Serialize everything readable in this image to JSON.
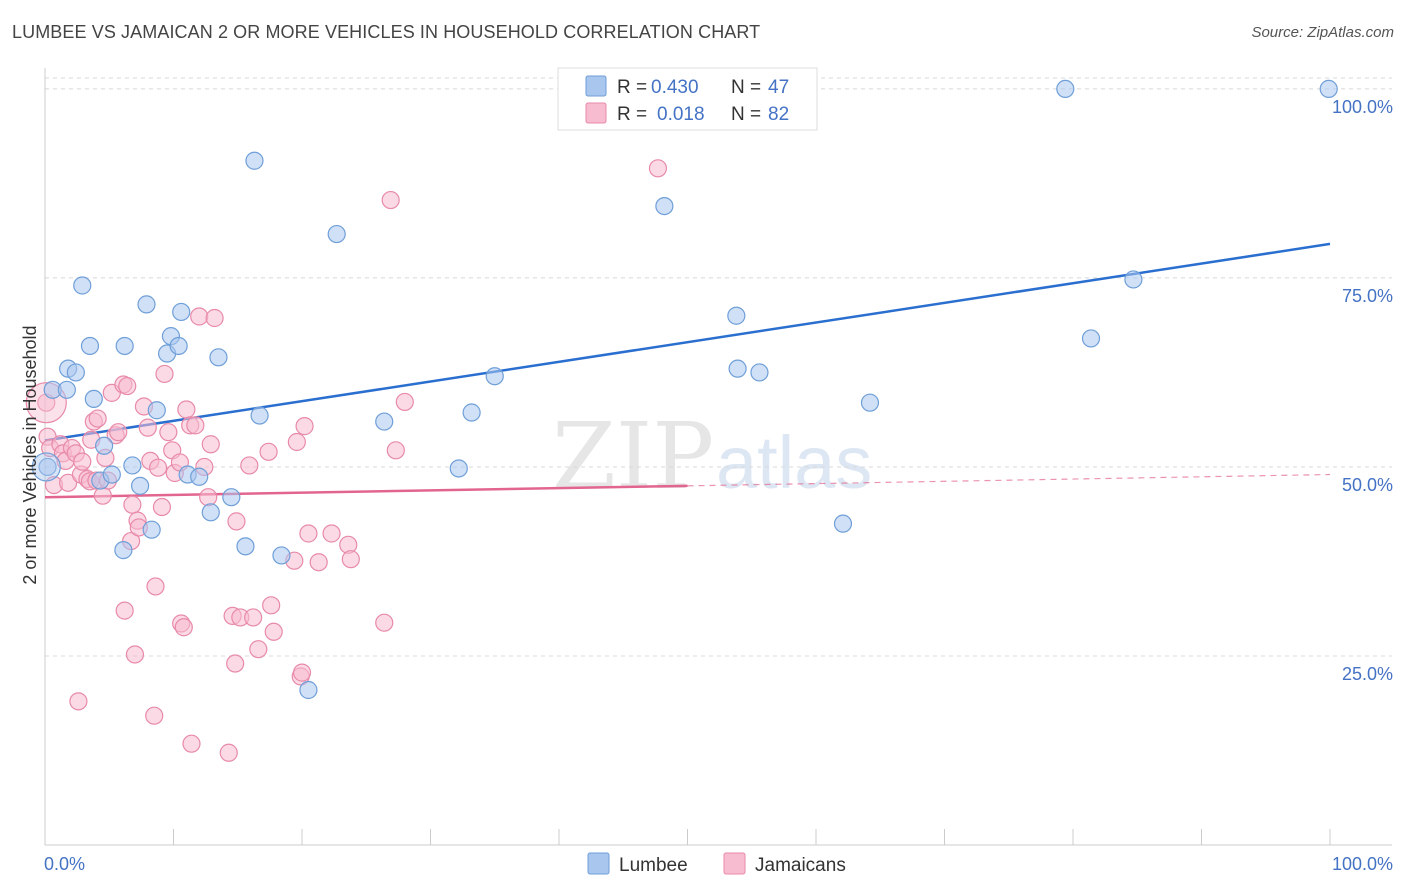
{
  "header": {
    "title": "LUMBEE VS JAMAICAN 2 OR MORE VEHICLES IN HOUSEHOLD CORRELATION CHART",
    "source": "Source: ZipAtlas.com"
  },
  "watermark": {
    "zip": "ZIP",
    "atlas": "atlas"
  },
  "colors": {
    "lumbee_fill": "#a9c6ee",
    "lumbee_stroke": "#6f9fd8",
    "lumbee_line": "#2a6fcf",
    "jam_fill": "#f7bcd0",
    "jam_stroke": "#e88aaa",
    "jam_line": "#e2658f",
    "grid": "#d8d8d8",
    "tick_label": "#4472c4"
  },
  "legend": {
    "rows": [
      {
        "r_label": "R =",
        "r_value": "0.430",
        "n_label": "N =",
        "n_value": "47"
      },
      {
        "r_label": "R =",
        "r_value": "0.018",
        "n_label": "N =",
        "n_value": "82"
      }
    ]
  },
  "bottom_legend": {
    "lumbee": "Lumbee",
    "jamaicans": "Jamaicans"
  },
  "chart_data": {
    "type": "scatter",
    "title": "LUMBEE VS JAMAICAN 2 OR MORE VEHICLES IN HOUSEHOLD CORRELATION CHART",
    "xlabel": "",
    "ylabel": "2 or more Vehicles in Household",
    "xlim": [
      0,
      100
    ],
    "ylim": [
      0,
      102.5
    ],
    "x_tick_labels": [
      "0.0%",
      "100.0%"
    ],
    "y_ticks": [
      25,
      50,
      75,
      100
    ],
    "y_tick_labels": [
      "25.0%",
      "50.0%",
      "75.0%",
      "100.0%"
    ],
    "grid": true,
    "series": [
      {
        "name": "Lumbee",
        "r": 0.43,
        "n": 47,
        "trend": {
          "x0": 0,
          "y0": 53.5,
          "x1": 100,
          "y1": 79.5,
          "x_solid_end": 100
        },
        "points": [
          [
            0.2,
            50
          ],
          [
            0.6,
            60.2
          ],
          [
            1.7,
            60.2
          ],
          [
            1.8,
            63
          ],
          [
            2.4,
            62.5
          ],
          [
            2.9,
            74
          ],
          [
            3.5,
            66
          ],
          [
            3.8,
            59
          ],
          [
            4.3,
            48.2
          ],
          [
            4.6,
            52.8
          ],
          [
            5.2,
            49
          ],
          [
            6.1,
            39
          ],
          [
            6.2,
            66
          ],
          [
            6.8,
            50.2
          ],
          [
            7.4,
            47.5
          ],
          [
            7.9,
            71.5
          ],
          [
            8.3,
            41.7
          ],
          [
            8.7,
            57.5
          ],
          [
            9.5,
            65
          ],
          [
            9.8,
            67.3
          ],
          [
            10.4,
            66
          ],
          [
            10.6,
            70.5
          ],
          [
            11.1,
            49
          ],
          [
            12.0,
            48.7
          ],
          [
            12.9,
            44
          ],
          [
            13.5,
            64.5
          ],
          [
            14.5,
            46
          ],
          [
            15.6,
            39.5
          ],
          [
            16.3,
            90.5
          ],
          [
            16.7,
            56.8
          ],
          [
            18.4,
            38.3
          ],
          [
            20.5,
            20.5
          ],
          [
            22.7,
            80.8
          ],
          [
            26.4,
            56
          ],
          [
            32.2,
            49.8
          ],
          [
            33.2,
            57.2
          ],
          [
            35.0,
            62
          ],
          [
            48.2,
            84.5
          ],
          [
            53.8,
            70
          ],
          [
            53.9,
            63
          ],
          [
            55.6,
            62.5
          ],
          [
            62.1,
            42.5
          ],
          [
            64.2,
            58.5
          ],
          [
            79.4,
            100
          ],
          [
            81.4,
            67
          ],
          [
            84.7,
            74.8
          ],
          [
            99.9,
            100
          ]
        ]
      },
      {
        "name": "Jamaicans",
        "r": 0.018,
        "n": 82,
        "trend": {
          "x0": 0,
          "y0": 46,
          "x1": 100,
          "y1": 49,
          "x_solid_end": 50
        },
        "points": [
          [
            0.1,
            58.5
          ],
          [
            0.2,
            54
          ],
          [
            0.4,
            52.5
          ],
          [
            0.7,
            47.6
          ],
          [
            1.2,
            53
          ],
          [
            1.4,
            51.8
          ],
          [
            1.6,
            50.8
          ],
          [
            1.8,
            47.9
          ],
          [
            2.1,
            52.5
          ],
          [
            2.4,
            51.8
          ],
          [
            2.6,
            19
          ],
          [
            2.8,
            49
          ],
          [
            2.9,
            50.7
          ],
          [
            3.3,
            48.4
          ],
          [
            3.5,
            48.1
          ],
          [
            3.6,
            53.6
          ],
          [
            3.8,
            56
          ],
          [
            4.0,
            48.2
          ],
          [
            4.1,
            56.4
          ],
          [
            4.5,
            46.2
          ],
          [
            4.7,
            51.2
          ],
          [
            4.9,
            48.2
          ],
          [
            5.2,
            59.8
          ],
          [
            5.5,
            54.2
          ],
          [
            5.7,
            54.6
          ],
          [
            6.1,
            60.9
          ],
          [
            6.2,
            31
          ],
          [
            6.4,
            60.7
          ],
          [
            6.7,
            40.2
          ],
          [
            6.8,
            45
          ],
          [
            7.0,
            25.2
          ],
          [
            7.2,
            42.9
          ],
          [
            7.3,
            42
          ],
          [
            7.7,
            58
          ],
          [
            8.0,
            55.2
          ],
          [
            8.2,
            50.8
          ],
          [
            8.5,
            17.1
          ],
          [
            8.6,
            34.2
          ],
          [
            8.8,
            49.9
          ],
          [
            9.1,
            44.7
          ],
          [
            9.3,
            62.3
          ],
          [
            9.6,
            54.6
          ],
          [
            9.9,
            52.2
          ],
          [
            10.1,
            49.2
          ],
          [
            10.5,
            50.6
          ],
          [
            10.6,
            29.3
          ],
          [
            10.8,
            28.8
          ],
          [
            11.0,
            57.6
          ],
          [
            11.3,
            55.5
          ],
          [
            11.4,
            13.4
          ],
          [
            11.7,
            55.5
          ],
          [
            12.0,
            69.9
          ],
          [
            12.4,
            50
          ],
          [
            12.7,
            46
          ],
          [
            12.9,
            53
          ],
          [
            13.2,
            69.7
          ],
          [
            14.3,
            12.2
          ],
          [
            14.6,
            30.3
          ],
          [
            14.8,
            24
          ],
          [
            14.9,
            42.8
          ],
          [
            15.2,
            30.1
          ],
          [
            15.9,
            50.2
          ],
          [
            16.2,
            30.1
          ],
          [
            16.6,
            25.9
          ],
          [
            17.4,
            52
          ],
          [
            17.6,
            31.7
          ],
          [
            17.8,
            28.2
          ],
          [
            19.4,
            37.6
          ],
          [
            19.6,
            53.3
          ],
          [
            19.9,
            22.3
          ],
          [
            20.0,
            22.8
          ],
          [
            20.2,
            55.4
          ],
          [
            20.5,
            41.2
          ],
          [
            21.3,
            37.4
          ],
          [
            22.3,
            41.2
          ],
          [
            23.6,
            39.7
          ],
          [
            23.8,
            37.8
          ],
          [
            26.4,
            29.4
          ],
          [
            26.9,
            85.3
          ],
          [
            27.3,
            52.2
          ],
          [
            28.0,
            58.6
          ],
          [
            47.7,
            89.5
          ]
        ]
      }
    ]
  }
}
